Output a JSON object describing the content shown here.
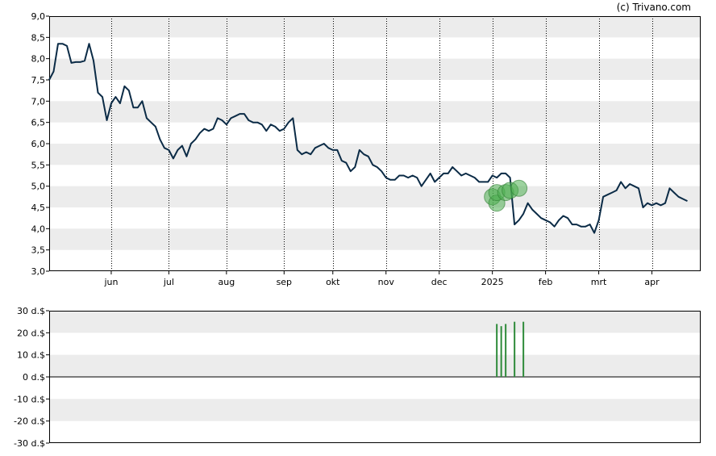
{
  "credit": "(c) Trivano.com",
  "colors": {
    "line": "#0b2b46",
    "band": "#ececec",
    "marker": "#4caf50",
    "bar": "#2e8b3a",
    "grid": "#000000"
  },
  "chart_data": [
    {
      "type": "line",
      "title": "",
      "xlabel": "",
      "ylabel": "",
      "ylim": [
        3.0,
        9.0
      ],
      "y_ticks": [
        "3,0",
        "3,5",
        "4,0",
        "4,5",
        "5,0",
        "5,5",
        "6,0",
        "6,5",
        "7,0",
        "7,5",
        "8,0",
        "8,5",
        "9,0"
      ],
      "x_ticks": [
        "jun",
        "jul",
        "aug",
        "sep",
        "okt",
        "nov",
        "dec",
        "2025",
        "feb",
        "mrt",
        "apr"
      ],
      "x_tick_index": [
        14,
        27,
        40,
        53,
        64,
        76,
        88,
        100,
        112,
        124,
        136
      ],
      "x_count": 148,
      "grid": "vertical-dotted",
      "series": [
        {
          "values": [
            7.5,
            7.7,
            8.35,
            8.35,
            8.3,
            7.9,
            7.92,
            7.92,
            7.95,
            8.35,
            7.95,
            7.2,
            7.1,
            6.55,
            6.95,
            7.1,
            6.95,
            7.35,
            7.25,
            6.85,
            6.85,
            7.0,
            6.6,
            6.5,
            6.4,
            6.1,
            5.9,
            5.85,
            5.65,
            5.85,
            5.95,
            5.7,
            6.0,
            6.1,
            6.25,
            6.35,
            6.3,
            6.35,
            6.6,
            6.55,
            6.45,
            6.6,
            6.65,
            6.7,
            6.7,
            6.55,
            6.5,
            6.5,
            6.45,
            6.3,
            6.45,
            6.4,
            6.3,
            6.35,
            6.5,
            6.6,
            5.85,
            5.75,
            5.8,
            5.75,
            5.9,
            5.95,
            6.0,
            5.9,
            5.85,
            5.85,
            5.6,
            5.55,
            5.35,
            5.45,
            5.85,
            5.75,
            5.7,
            5.5,
            5.45,
            5.35,
            5.2,
            5.15,
            5.15,
            5.25,
            5.25,
            5.2,
            5.25,
            5.2,
            5.0,
            5.15,
            5.3,
            5.1,
            5.2,
            5.3,
            5.3,
            5.45,
            5.35,
            5.25,
            5.3,
            5.25,
            5.2,
            5.1,
            5.1,
            5.1,
            5.25,
            5.2,
            5.3,
            5.3,
            5.2,
            4.1,
            4.2,
            4.35,
            4.6,
            4.45,
            4.35,
            4.25,
            4.2,
            4.15,
            4.05,
            4.2,
            4.3,
            4.25,
            4.1,
            4.1,
            4.05,
            4.05,
            4.1,
            3.9,
            4.2,
            4.75,
            4.8,
            4.85,
            4.9,
            5.1,
            4.95,
            5.05,
            5.0,
            4.95,
            4.5,
            4.6,
            4.55,
            4.6,
            4.55,
            4.6,
            4.95,
            4.85,
            4.75,
            4.7,
            4.65
          ],
          "markers": [
            {
              "x": 100,
              "y": 4.75
            },
            {
              "x": 101,
              "y": 4.6
            },
            {
              "x": 101,
              "y": 4.85
            },
            {
              "x": 103,
              "y": 4.85
            },
            {
              "x": 104,
              "y": 4.9
            },
            {
              "x": 106,
              "y": 4.95
            }
          ]
        }
      ]
    },
    {
      "type": "bar",
      "title": "",
      "xlabel": "",
      "ylabel": "",
      "ylim": [
        -30,
        30
      ],
      "y_ticks": [
        "30 d.$",
        "20 d.$",
        "10 d.$",
        "0 d.$",
        "-10 d.$",
        "-20 d.$",
        "-30 d.$"
      ],
      "series": [
        {
          "bars": [
            {
              "x": 101,
              "y": 24
            },
            {
              "x": 102,
              "y": 23
            },
            {
              "x": 103,
              "y": 24
            },
            {
              "x": 105,
              "y": 25
            },
            {
              "x": 107,
              "y": 25
            }
          ]
        }
      ]
    }
  ]
}
